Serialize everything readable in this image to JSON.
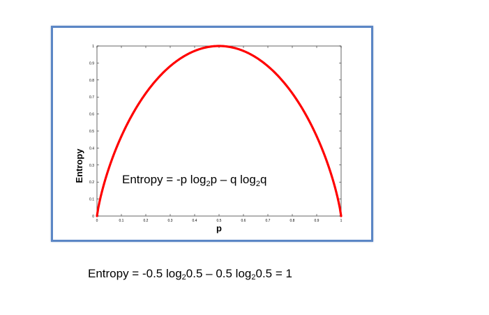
{
  "chart_data": {
    "type": "line",
    "xlabel": "p",
    "ylabel": "Entropy",
    "xlim": [
      0,
      1
    ],
    "ylim": [
      0,
      1
    ],
    "x_ticks": [
      "0",
      "0.1",
      "0.2",
      "0.3",
      "0.4",
      "0.5",
      "0.6",
      "0.7",
      "0.8",
      "0.9",
      "1"
    ],
    "y_ticks": [
      "0",
      "0.1",
      "0.2",
      "0.3",
      "0.4",
      "0.5",
      "0.6",
      "0.7",
      "0.8",
      "0.9",
      "1"
    ],
    "series": [
      {
        "function": "binary_entropy",
        "color": "#ff0000",
        "x": [
          0,
          0.05,
          0.1,
          0.15,
          0.2,
          0.25,
          0.3,
          0.35,
          0.4,
          0.45,
          0.5,
          0.55,
          0.6,
          0.65,
          0.7,
          0.75,
          0.8,
          0.85,
          0.9,
          0.95,
          1
        ],
        "y": [
          0,
          0.286,
          0.469,
          0.61,
          0.722,
          0.811,
          0.881,
          0.934,
          0.971,
          0.993,
          1,
          0.993,
          0.971,
          0.934,
          0.881,
          0.811,
          0.722,
          0.61,
          0.469,
          0.286,
          0
        ]
      }
    ],
    "annotation": {
      "prefix": "Entropy  = -p log",
      "sub1": "2",
      "mid": "p – q log",
      "sub2": "2",
      "suffix": "q"
    },
    "grid": false
  },
  "caption": {
    "part1": "Entropy = -0.5 log",
    "sub1": "2",
    "part2": "0.5 – 0.5 log",
    "sub2": "2",
    "part3": "0.5 = 1"
  },
  "colors": {
    "curve": "#ff0000",
    "frame_border": "#5b86c5"
  }
}
